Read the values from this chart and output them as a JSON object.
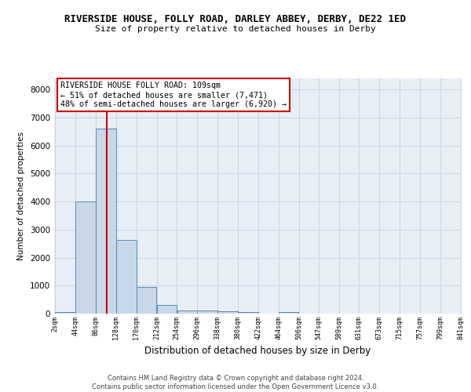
{
  "title": "RIVERSIDE HOUSE, FOLLY ROAD, DARLEY ABBEY, DERBY, DE22 1ED",
  "subtitle": "Size of property relative to detached houses in Derby",
  "xlabel": "Distribution of detached houses by size in Derby",
  "ylabel": "Number of detached properties",
  "bar_color": "#c8d8e8",
  "bar_edge_color": "#5a8ab0",
  "grid_color": "#c8d8e8",
  "bg_color": "#e8eef5",
  "vline_color": "#cc0000",
  "vline_x": 109,
  "bin_edges": [
    2,
    44,
    86,
    128,
    170,
    212,
    254,
    296,
    338,
    380,
    422,
    464,
    506,
    547,
    589,
    631,
    673,
    715,
    757,
    799,
    841
  ],
  "bar_heights": [
    70,
    4000,
    6600,
    2620,
    950,
    310,
    125,
    120,
    75,
    60,
    0,
    60,
    0,
    0,
    0,
    0,
    0,
    0,
    0,
    0
  ],
  "ylim": [
    0,
    8400
  ],
  "yticks": [
    0,
    1000,
    2000,
    3000,
    4000,
    5000,
    6000,
    7000,
    8000
  ],
  "annotation_title": "RIVERSIDE HOUSE FOLLY ROAD: 109sqm",
  "annotation_line1": "← 51% of detached houses are smaller (7,471)",
  "annotation_line2": "48% of semi-detached houses are larger (6,920) →",
  "footer_line1": "Contains HM Land Registry data © Crown copyright and database right 2024.",
  "footer_line2": "Contains public sector information licensed under the Open Government Licence v3.0.",
  "xtick_labels": [
    "2sqm",
    "44sqm",
    "86sqm",
    "128sqm",
    "170sqm",
    "212sqm",
    "254sqm",
    "296sqm",
    "338sqm",
    "380sqm",
    "422sqm",
    "464sqm",
    "506sqm",
    "547sqm",
    "589sqm",
    "631sqm",
    "673sqm",
    "715sqm",
    "757sqm",
    "799sqm",
    "841sqm"
  ]
}
